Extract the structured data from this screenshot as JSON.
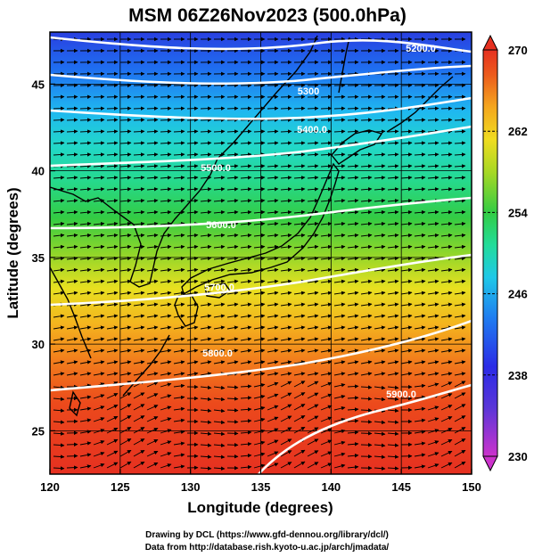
{
  "title": "MSM 06Z26Nov2023 (500.0hPa)",
  "xlabel": "Longitude (degrees)",
  "ylabel": "Latitude  (degrees)",
  "credits": {
    "line1": "Drawing by DCL (https://www.gfd-dennou.org/library/dcl/)",
    "line2": "Data from http://database.rish.kyoto-u.ac.jp/arch/jmadata/"
  },
  "colorbar": {
    "min": 230,
    "max": 270,
    "ticks": [
      "270",
      "262",
      "254",
      "246",
      "238",
      "230"
    ],
    "colors": [
      "#cc33cc",
      "#6a3fd6",
      "#2b2be6",
      "#1f6cf0",
      "#1fb8f0",
      "#22e0d0",
      "#26d98a",
      "#33cc44",
      "#7ad12e",
      "#c8de1e",
      "#f4e020",
      "#f7b21e",
      "#f27f1c",
      "#ec4a1c",
      "#e63020"
    ]
  },
  "map_extent": {
    "lon": [
      120,
      150
    ],
    "lat": [
      22.5,
      48
    ]
  },
  "x_ticks": [
    "120",
    "125",
    "130",
    "135",
    "140",
    "145",
    "150"
  ],
  "y_ticks": [
    "25",
    "30",
    "35",
    "40",
    "45"
  ],
  "contours": {
    "labels": [
      "5200.0",
      "5300",
      "5400.0",
      "5500.0",
      "5600.0",
      "5700.0",
      "5800.0",
      "5900.0"
    ]
  },
  "wind_vectors": "westerly streamline arrows across the domain"
}
